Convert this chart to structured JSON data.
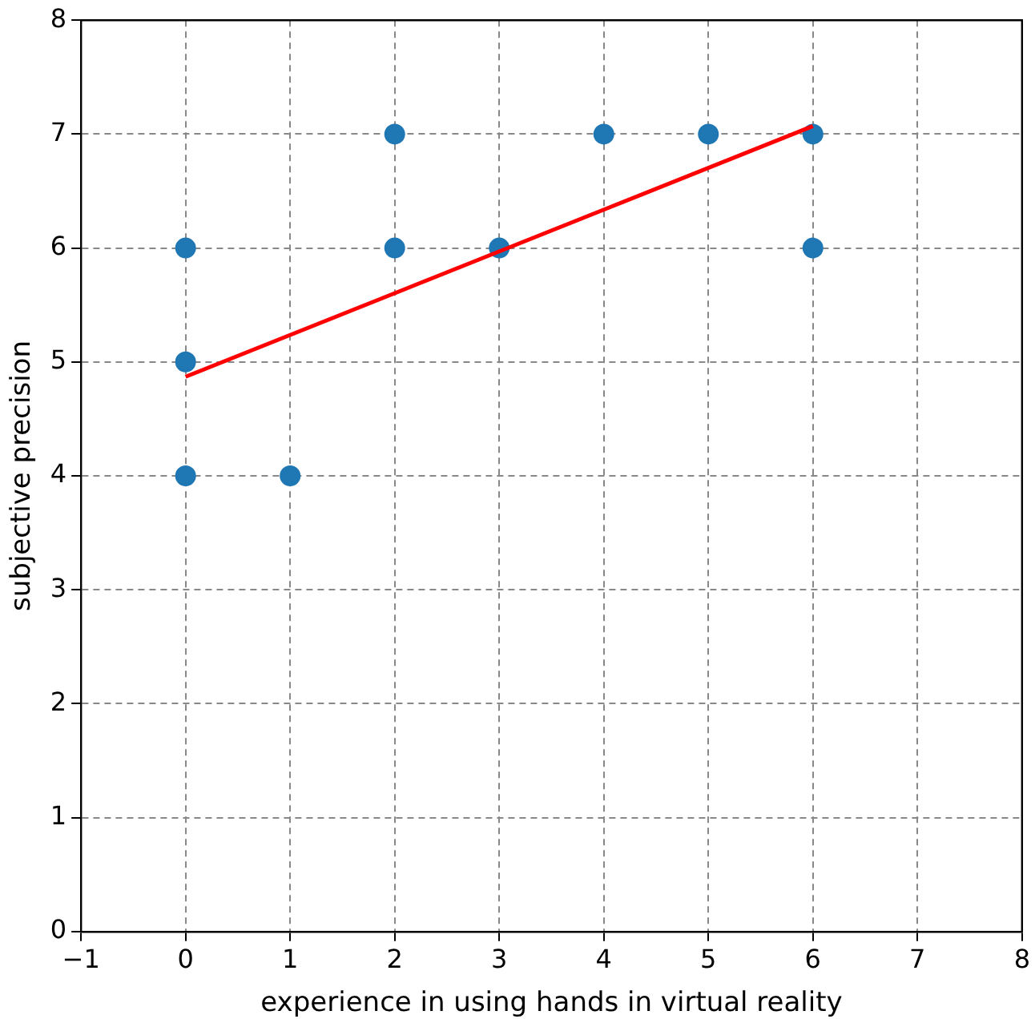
{
  "chart_data": {
    "type": "scatter",
    "xlabel": "experience in using hands in virtual reality",
    "ylabel": "subjective precision",
    "xlim": [
      -1,
      8
    ],
    "ylim": [
      0,
      8
    ],
    "xticks": [
      -1,
      0,
      1,
      2,
      3,
      4,
      5,
      6,
      7,
      8
    ],
    "yticks": [
      0,
      1,
      2,
      3,
      4,
      5,
      6,
      7,
      8
    ],
    "grid": true,
    "legend": false,
    "marker": "circle",
    "series": [
      {
        "color": "#1f77b4",
        "x": [
          0,
          0,
          0,
          1,
          2,
          2,
          3,
          4,
          5,
          6,
          6
        ],
        "values": [
          6,
          5,
          4,
          4,
          7,
          6,
          6,
          7,
          7,
          7,
          6
        ]
      },
      {
        "type": "line",
        "color": "#ff0000",
        "line_style": "solid",
        "marker": "none",
        "x": [
          0,
          6
        ],
        "values": [
          4.87,
          7.07
        ]
      }
    ]
  }
}
